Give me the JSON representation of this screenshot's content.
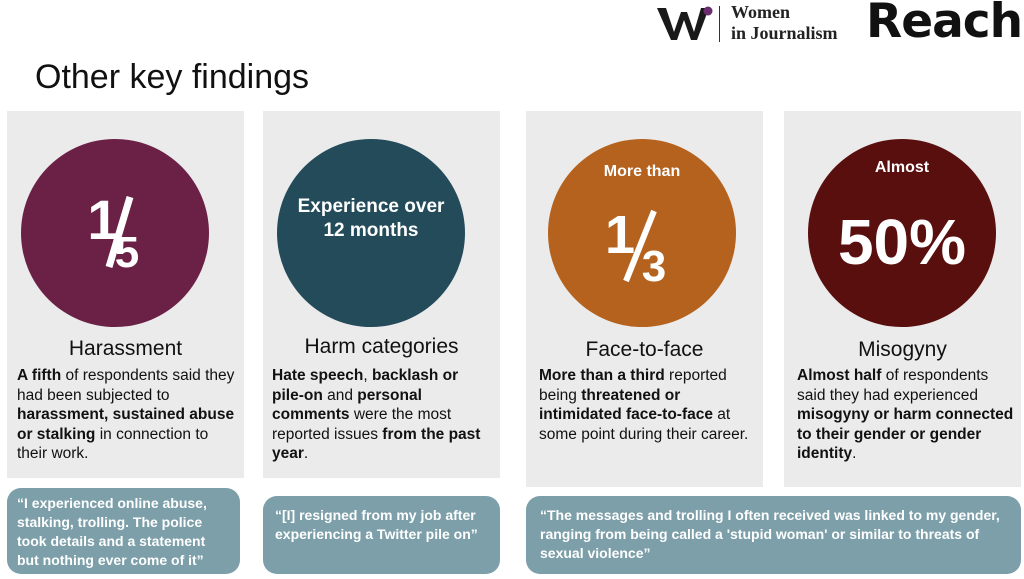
{
  "header": {
    "logo_line1": "Women",
    "logo_line2": "in Journalism",
    "brand": "Reach"
  },
  "page_title": "Other key findings",
  "colors": {
    "harassment": "#6b2146",
    "harm": "#234b59",
    "face": "#b5621e",
    "misogyny": "#5a0f0f",
    "quote_bg": "#7c9fa9",
    "panel_bg": "#ebebeb"
  },
  "cards": [
    {
      "circle_top": "",
      "circle_big": "1/5",
      "circle_num": "1",
      "circle_den": "5",
      "heading": "Harassment",
      "body": [
        {
          "b": "A fifth"
        },
        {
          "t": " of respondents said they had been subjected to "
        },
        {
          "b": "harassment, sustained abuse or stalking"
        },
        {
          "t": " in connection to their work."
        }
      ]
    },
    {
      "circle_text": "Experience over 12 months",
      "heading": "Harm categories",
      "body": [
        {
          "b": "Hate speech"
        },
        {
          "t": ", "
        },
        {
          "b": "backlash or pile-on"
        },
        {
          "t": " and "
        },
        {
          "b": "personal comments"
        },
        {
          "t": " were the most reported issues "
        },
        {
          "b": "from the past year"
        },
        {
          "t": "."
        }
      ]
    },
    {
      "circle_top": "More than",
      "circle_num": "1",
      "circle_den": "3",
      "heading": "Face-to-face",
      "body": [
        {
          "b": "More than a third"
        },
        {
          "t": " reported being "
        },
        {
          "b": "threatened or intimidated face-to-face"
        },
        {
          "t": " at some point during their career."
        }
      ]
    },
    {
      "circle_top": "Almost",
      "circle_big": "50%",
      "heading": "Misogyny",
      "body": [
        {
          "b": "Almost half"
        },
        {
          "t": " of respondents said they had experienced "
        },
        {
          "b": "misogyny or harm connected to their gender or gender identity"
        },
        {
          "t": "."
        }
      ]
    }
  ],
  "quotes": [
    "“I experienced online abuse, stalking, trolling. The  police took details and a statement but nothing ever come of it”",
    "“[I] resigned from my job after experiencing a Twitter pile on”",
    "“The messages and trolling I often received was linked to my gender, ranging from being called a 'stupid woman' or similar to threats of sexual violence”"
  ]
}
